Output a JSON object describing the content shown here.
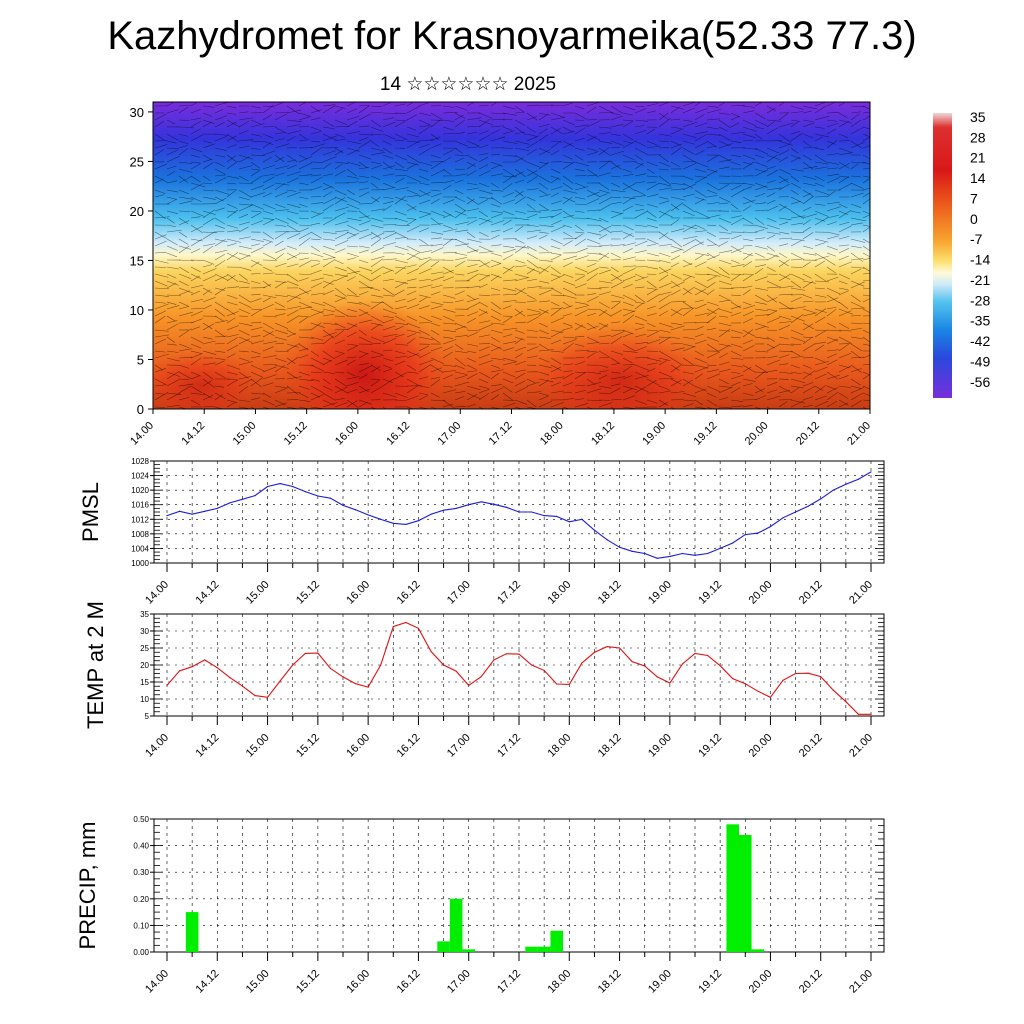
{
  "title": "Kazhydromet for Krasnoyarmeika(52.33 77.3)",
  "subtitle": "14 ☆☆☆☆☆☆ 2025",
  "time_ticks": [
    "14.00",
    "14.12",
    "15.00",
    "15.12",
    "16.00",
    "16.12",
    "17.00",
    "17.12",
    "18.00",
    "18.12",
    "19.00",
    "19.12",
    "20.00",
    "20.12",
    "21.00"
  ],
  "chart_data": [
    {
      "type": "heatmap",
      "name": "",
      "ylim": [
        0,
        31
      ],
      "y_ticks": [
        "0",
        "5",
        "10",
        "15",
        "20",
        "25",
        "30"
      ],
      "colorbar_labels": [
        "35",
        "28",
        "21",
        "14",
        "7",
        "0",
        "-7",
        "-14",
        "-21",
        "-28",
        "-35",
        "-42",
        "-49",
        "-56"
      ]
    },
    {
      "type": "line",
      "ylabel": "PMSL",
      "ylim": [
        1000,
        1028
      ],
      "y_ticks": [
        "1028",
        "1024",
        "1020",
        "1016",
        "1012",
        "1008",
        "1004",
        "1000"
      ],
      "color": "#1a1adb",
      "x": [
        "14.00",
        "14.03",
        "14.06",
        "14.09",
        "14.12",
        "14.15",
        "14.18",
        "14.21",
        "15.00",
        "15.03",
        "15.06",
        "15.09",
        "15.12",
        "15.15",
        "15.18",
        "15.21",
        "16.00",
        "16.03",
        "16.06",
        "16.09",
        "16.12",
        "16.15",
        "16.18",
        "16.21",
        "17.00",
        "17.03",
        "17.06",
        "17.09",
        "17.12",
        "17.15",
        "17.18",
        "17.21",
        "18.00",
        "18.03",
        "18.06",
        "18.09",
        "18.12",
        "18.15",
        "18.18",
        "18.21",
        "19.00",
        "19.03",
        "19.06",
        "19.09",
        "19.12",
        "19.15",
        "19.18",
        "19.21",
        "20.00",
        "20.03",
        "20.06",
        "20.09",
        "20.12",
        "20.15",
        "20.18",
        "20.21",
        "21.00"
      ],
      "values": [
        1013,
        1014.2,
        1013.4,
        1014.2,
        1015,
        1016.5,
        1017.5,
        1018.5,
        1021,
        1021.8,
        1021,
        1019.6,
        1018.4,
        1017.8,
        1015.8,
        1014.6,
        1013.2,
        1012,
        1010.9,
        1010.6,
        1011.6,
        1013.4,
        1014.5,
        1015,
        1016,
        1016.8,
        1016.1,
        1015.3,
        1014,
        1014,
        1013,
        1012.8,
        1011.3,
        1012,
        1009,
        1006.4,
        1004.3,
        1003.2,
        1002.6,
        1001.3,
        1001.8,
        1002.6,
        1002.1,
        1002.6,
        1004,
        1005.5,
        1007.8,
        1008.2,
        1010,
        1012.4,
        1014,
        1015.6,
        1017.6,
        1020,
        1021.6,
        1023,
        1025
      ]
    },
    {
      "type": "line",
      "ylabel": "TEMP at 2 M",
      "ylim": [
        5,
        35
      ],
      "y_ticks": [
        "35",
        "30",
        "25",
        "20",
        "15",
        "10",
        "5"
      ],
      "color": "#e01010",
      "x": [
        "14.00",
        "14.03",
        "14.06",
        "14.09",
        "14.12",
        "14.15",
        "14.18",
        "14.21",
        "15.00",
        "15.03",
        "15.06",
        "15.09",
        "15.12",
        "15.15",
        "15.18",
        "15.21",
        "16.00",
        "16.03",
        "16.06",
        "16.09",
        "16.12",
        "16.15",
        "16.18",
        "16.21",
        "17.00",
        "17.03",
        "17.06",
        "17.09",
        "17.12",
        "17.15",
        "17.18",
        "17.21",
        "18.00",
        "18.03",
        "18.06",
        "18.09",
        "18.12",
        "18.15",
        "18.18",
        "18.21",
        "19.00",
        "19.03",
        "19.06",
        "19.09",
        "19.12",
        "19.15",
        "19.18",
        "19.21",
        "20.00",
        "20.03",
        "20.06",
        "20.09",
        "20.12",
        "20.15",
        "20.18",
        "20.21",
        "21.00"
      ],
      "values": [
        14,
        18.3,
        19.5,
        21.5,
        19.2,
        16.3,
        13.8,
        11,
        10.5,
        15.3,
        20,
        23.4,
        23.5,
        19,
        16.5,
        14.5,
        13.5,
        20,
        31.3,
        32.5,
        30.8,
        24,
        20,
        18.2,
        14,
        16.6,
        21.5,
        23.3,
        23.2,
        20,
        18.4,
        14.4,
        14.3,
        20.6,
        23.7,
        25.4,
        25,
        21,
        19.7,
        16.5,
        14.7,
        20.3,
        23.4,
        22.8,
        19.8,
        16,
        14.5,
        12.3,
        10.5,
        15.5,
        17.5,
        17.6,
        16.6,
        12.6,
        9.2,
        5.5,
        5.5
      ]
    },
    {
      "type": "bar",
      "ylabel": "PRECIP, mm",
      "ylim": [
        0,
        0.5
      ],
      "y_ticks": [
        "0.50",
        "0.40",
        "0.30",
        "0.20",
        "0.10",
        "0.00"
      ],
      "color": "#00ee00",
      "x": [
        "14.06",
        "16.18",
        "16.21",
        "17.00",
        "17.15",
        "17.18",
        "17.21",
        "19.15",
        "19.18",
        "19.21"
      ],
      "values": [
        0.15,
        0.04,
        0.2,
        0.01,
        0.02,
        0.02,
        0.08,
        0.48,
        0.44,
        0.01
      ]
    }
  ]
}
